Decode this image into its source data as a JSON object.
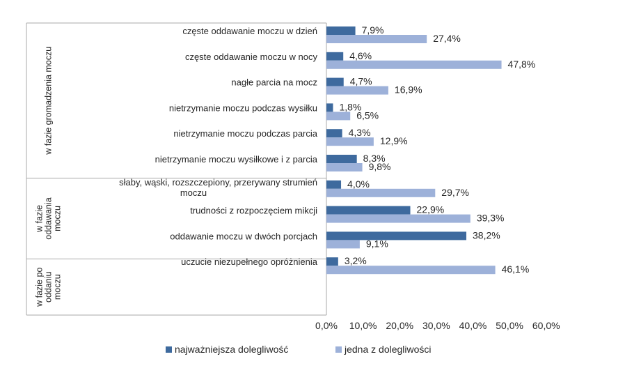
{
  "colors": {
    "series1": "#3E6A9E",
    "series2": "#9DB1D9",
    "grid": "#A8A8A8"
  },
  "chart_data": {
    "type": "bar",
    "orientation": "horizontal",
    "title": "",
    "xlim": [
      0,
      60
    ],
    "x_ticks": [
      "0,0%",
      "10,0%",
      "20,0%",
      "30,0%",
      "40,0%",
      "50,0%",
      "60,0%"
    ],
    "groups": [
      {
        "label": "w fazie gromadzenia moczu",
        "label_lines": [
          "w fazie gromadzenia moczu"
        ]
      },
      {
        "label": "w fazie oddawania moczu",
        "label_lines": [
          "w fazie",
          "oddawania",
          "moczu"
        ]
      },
      {
        "label": "w fazie po oddaniu moczu",
        "label_lines": [
          "w fazie po",
          "oddaniu",
          "moczu"
        ]
      }
    ],
    "categories": [
      {
        "label_lines": [
          "częste oddawanie moczu w dzień"
        ],
        "group": 0
      },
      {
        "label_lines": [
          "częste oddawanie moczu w nocy"
        ],
        "group": 0
      },
      {
        "label_lines": [
          "nagłe parcia na mocz"
        ],
        "group": 0
      },
      {
        "label_lines": [
          "nietrzymanie moczu podczas wysiłku"
        ],
        "group": 0
      },
      {
        "label_lines": [
          "nietrzymanie moczu podczas parcia"
        ],
        "group": 0
      },
      {
        "label_lines": [
          "nietrzymanie moczu wysiłkowe i z parcia"
        ],
        "group": 0
      },
      {
        "label_lines": [
          "słaby, wąski, rozszczepiony, przerywany strumień",
          "moczu"
        ],
        "group": 1
      },
      {
        "label_lines": [
          "trudności z rozpoczęciem mikcji"
        ],
        "group": 1
      },
      {
        "label_lines": [
          "oddawanie moczu w dwóch porcjach"
        ],
        "group": 1
      },
      {
        "label_lines": [
          "uczucie niezupełnego opróżnienia"
        ],
        "group": 2
      }
    ],
    "series": [
      {
        "name": "najważniejsza dolegliwość",
        "values": [
          7.9,
          4.6,
          4.7,
          1.8,
          4.3,
          8.3,
          4.0,
          22.9,
          38.2,
          3.2
        ],
        "labels": [
          "7,9%",
          "4,6%",
          "4,7%",
          "1,8%",
          "4,3%",
          "8,3%",
          "4,0%",
          "22,9%",
          "38,2%",
          "3,2%"
        ]
      },
      {
        "name": "jedna z dolegliwości",
        "values": [
          27.4,
          47.8,
          16.9,
          6.5,
          12.9,
          9.8,
          29.7,
          39.3,
          9.1,
          46.1
        ],
        "labels": [
          "27,4%",
          "47,8%",
          "16,9%",
          "6,5%",
          "12,9%",
          "9,8%",
          "29,7%",
          "39,3%",
          "9,1%",
          "46,1%"
        ]
      }
    ],
    "legend_position": "bottom"
  }
}
